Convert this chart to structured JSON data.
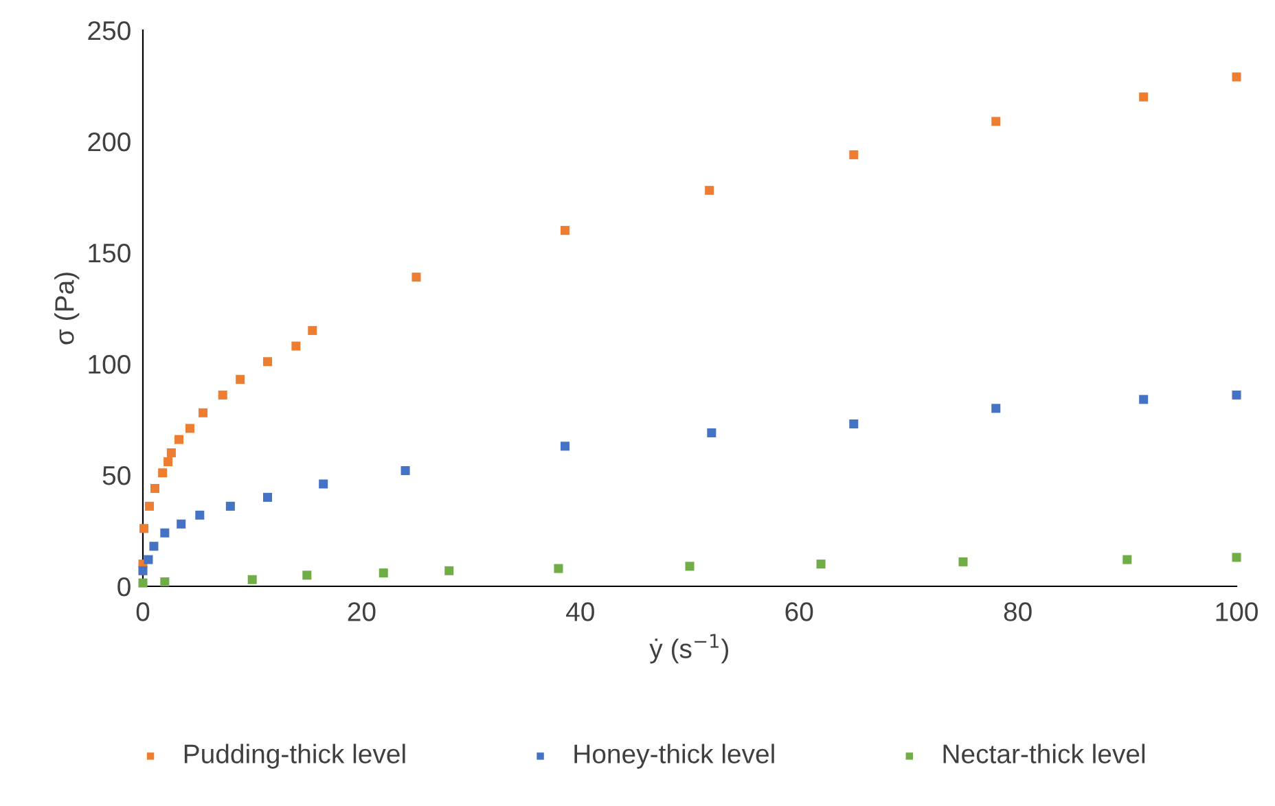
{
  "chart_data": {
    "type": "scatter",
    "xlabel": "ẏ (s$^{−1}$)",
    "ylabel": "σ (Pa)",
    "xlim": [
      0,
      100
    ],
    "xticks": [
      0,
      20,
      40,
      60,
      80,
      100
    ],
    "ylim": [
      0,
      250
    ],
    "yticks": [
      0,
      50,
      100,
      150,
      200,
      250
    ],
    "grid": false,
    "legend": "bottom",
    "marker": "square",
    "series": [
      {
        "name": "Pudding-thick level",
        "color": "#ed7d31",
        "x": [
          0,
          0.1,
          0.6,
          1.1,
          1.8,
          2.3,
          2.6,
          3.3,
          4.3,
          5.5,
          7.3,
          8.9,
          11.4,
          14,
          15.5,
          25,
          38.6,
          51.8,
          65,
          78,
          91.5,
          100
        ],
        "values": [
          10,
          26,
          36,
          44,
          51,
          56,
          60,
          66,
          71,
          78,
          86,
          93,
          101,
          108,
          115,
          139,
          160,
          178,
          194,
          209,
          220,
          229
        ]
      },
      {
        "name": "Honey-thick level",
        "color": "#4472c4",
        "x": [
          0,
          0.5,
          1,
          2,
          3.5,
          5.2,
          8,
          11.4,
          16.5,
          24,
          38.6,
          52,
          65,
          78,
          91.5,
          100
        ],
        "values": [
          7,
          12,
          18,
          24,
          28,
          32,
          36,
          40,
          46,
          52,
          63,
          69,
          73,
          80,
          84,
          86
        ]
      },
      {
        "name": "Nectar-thick level",
        "color": "#70ad47",
        "x": [
          0,
          2,
          10,
          15,
          22,
          28,
          38,
          50,
          62,
          75,
          90,
          100
        ],
        "values": [
          1.5,
          2,
          3,
          5,
          6,
          7,
          8,
          9,
          10,
          11,
          12,
          13
        ]
      }
    ]
  }
}
